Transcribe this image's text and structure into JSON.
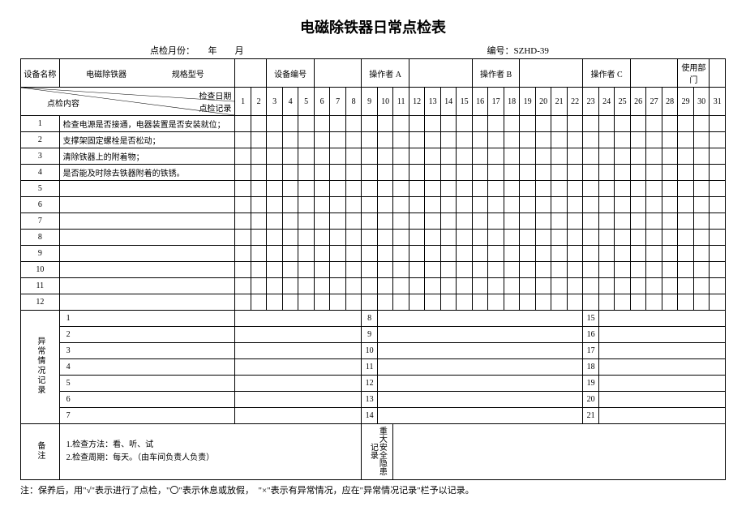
{
  "title": "电磁除铁器日常点检表",
  "meta": {
    "month_label": "点检月份：　　年　　月",
    "doc_no_label": "编号：",
    "doc_no": "SZHD-39"
  },
  "header_row": {
    "device_name_label": "设备名称",
    "device_name_value": "电磁除铁器",
    "model_label": "规格型号",
    "device_no_label": "设备编号",
    "operator_a_label": "操作者 A",
    "operator_b_label": "操作者 B",
    "operator_c_label": "操作者 C",
    "dept_label": "使用部门"
  },
  "diag": {
    "right_top": "检查日期",
    "left_mid": "点检内容",
    "right_bot": "点检记录"
  },
  "days": [
    "1",
    "2",
    "3",
    "4",
    "5",
    "6",
    "7",
    "8",
    "9",
    "10",
    "11",
    "12",
    "13",
    "14",
    "15",
    "16",
    "17",
    "18",
    "19",
    "20",
    "21",
    "22",
    "23",
    "24",
    "25",
    "26",
    "27",
    "28",
    "29",
    "30",
    "31"
  ],
  "check_items": [
    {
      "no": "1",
      "text": "检查电源是否接通，电器装置是否安装就位；"
    },
    {
      "no": "2",
      "text": "支撑架固定螺栓是否松动；"
    },
    {
      "no": "3",
      "text": "清除铁器上的附着物；"
    },
    {
      "no": "4",
      "text": "是否能及时除去铁器附着的铁锈。"
    },
    {
      "no": "5",
      "text": ""
    },
    {
      "no": "6",
      "text": ""
    },
    {
      "no": "7",
      "text": ""
    },
    {
      "no": "8",
      "text": ""
    },
    {
      "no": "9",
      "text": ""
    },
    {
      "no": "10",
      "text": ""
    },
    {
      "no": "11",
      "text": ""
    },
    {
      "no": "12",
      "text": ""
    }
  ],
  "abnormal": {
    "label": "异常情况记录",
    "col1": [
      "1",
      "2",
      "3",
      "4",
      "5",
      "6",
      "7"
    ],
    "col2": [
      "8",
      "9",
      "10",
      "11",
      "12",
      "13",
      "14"
    ],
    "col3": [
      "15",
      "16",
      "17",
      "18",
      "19",
      "20",
      "21"
    ]
  },
  "remarks": {
    "label": "备注",
    "line1": "1.检查方法：看、听、试",
    "line2": "2.检查周期：每天。（由车间负责人负责）",
    "hazard_label": "重大安全隐患记录"
  },
  "footnote": "注：保养后，用\"√\"表示进行了点检，\"〇\"表示休息或放假，　\"×\"表示有异常情况，应在\"异常情况记录\"栏予以记录。"
}
